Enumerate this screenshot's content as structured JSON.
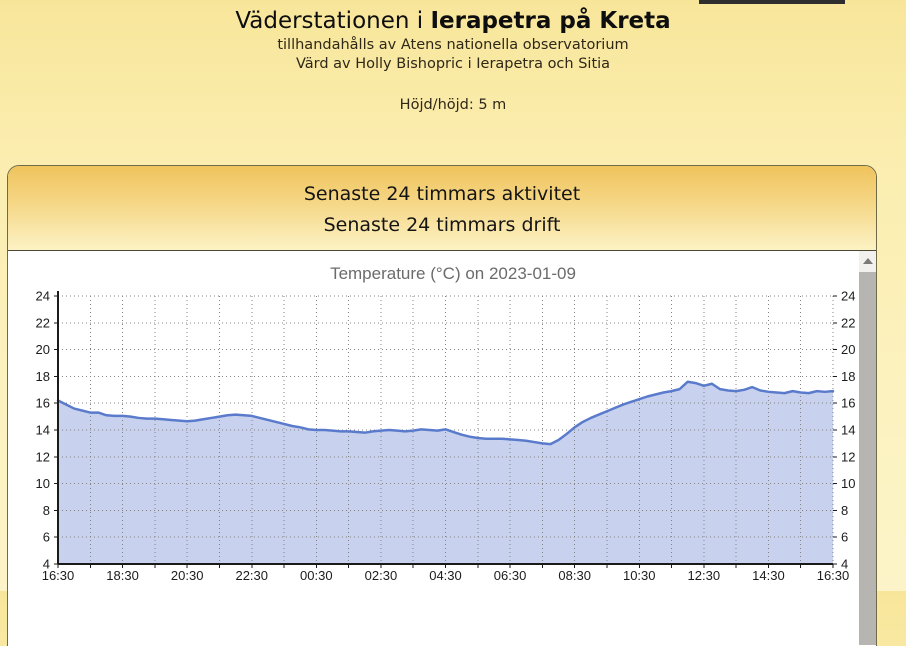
{
  "header": {
    "title_prefix": "Väderstationen i ",
    "title_bold": "Ierapetra på Kreta",
    "subtitle1": "tillhandahålls av Atens nationella observatorium",
    "subtitle2": "Värd av Holly Bishopric i Ierapetra och Sitia",
    "altitude_label": "Höjd/höjd: 5 m"
  },
  "panel": {
    "title_line1": "Senaste 24 timmars aktivitet",
    "title_line2": "Senaste 24 timmars drift",
    "border_color": "#6F6B49",
    "header_gradient_top": "#EFC35C",
    "header_gradient_bottom": "#FCF2C4"
  },
  "scrollbar": {
    "up_icon": "up-triangle",
    "track_color": "#F2F1EE",
    "thumb_color": "#B7B5B2"
  },
  "chart_data": {
    "type": "area",
    "title": "Temperature (°C) on 2023-01-09",
    "xlabel": "",
    "ylabel": "",
    "grid": true,
    "ylim": [
      4,
      24
    ],
    "y_tick_step": 2,
    "y_tick_labels": [
      "4",
      "6",
      "8",
      "10",
      "12",
      "14",
      "16",
      "18",
      "20",
      "22",
      "24"
    ],
    "y_axis_sides": "both",
    "x_hours_total": 24,
    "x_minor_grid_hours": 1,
    "x_tick_labels": [
      "16:30",
      "18:30",
      "20:30",
      "22:30",
      "00:30",
      "02:30",
      "04:30",
      "06:30",
      "08:30",
      "10:30",
      "12:30",
      "14:30",
      "16:30"
    ],
    "start_time": "16:30",
    "interval_minutes": 15,
    "axis_color": "#1A1A1A",
    "grid_dot_color": "#848484",
    "series": [
      {
        "name": "Temperature (°C)",
        "line_color": "#5A7BCC",
        "fill_color": "#C8D2EE",
        "values": [
          16.2,
          15.9,
          15.6,
          15.45,
          15.3,
          15.3,
          15.1,
          15.05,
          15.05,
          15.0,
          14.9,
          14.85,
          14.85,
          14.8,
          14.75,
          14.7,
          14.65,
          14.7,
          14.8,
          14.9,
          15.0,
          15.1,
          15.15,
          15.1,
          15.05,
          14.9,
          14.75,
          14.6,
          14.45,
          14.3,
          14.2,
          14.05,
          14.0,
          14.0,
          13.95,
          13.9,
          13.9,
          13.85,
          13.8,
          13.9,
          13.95,
          14.0,
          13.95,
          13.9,
          13.95,
          14.05,
          14.0,
          13.95,
          14.05,
          13.85,
          13.65,
          13.5,
          13.4,
          13.35,
          13.35,
          13.35,
          13.3,
          13.25,
          13.2,
          13.1,
          13.0,
          12.95,
          13.25,
          13.7,
          14.2,
          14.6,
          14.9,
          15.15,
          15.4,
          15.65,
          15.9,
          16.1,
          16.3,
          16.5,
          16.65,
          16.8,
          16.9,
          17.05,
          17.6,
          17.5,
          17.3,
          17.45,
          17.05,
          16.95,
          16.9,
          17.0,
          17.2,
          16.95,
          16.85,
          16.8,
          16.75,
          16.9,
          16.8,
          16.75,
          16.9,
          16.85,
          16.9
        ]
      }
    ]
  }
}
